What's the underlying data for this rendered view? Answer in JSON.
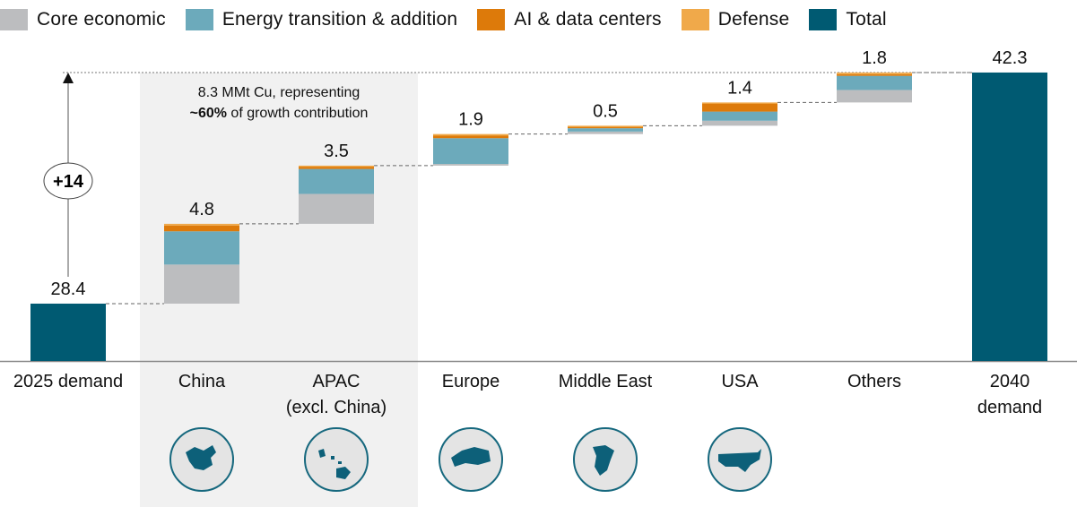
{
  "chart_data": {
    "type": "bar",
    "subtype": "waterfall-stacked",
    "title": "",
    "xlabel": "",
    "ylabel": "",
    "units": "MMt Cu",
    "grid": false,
    "legend_position": "top",
    "legend": [
      {
        "name": "Core economic",
        "color": "#bcbdbf"
      },
      {
        "name": "Energy transition & addition",
        "color": "#6caabb"
      },
      {
        "name": "AI & data centers",
        "color": "#dd7a0a"
      },
      {
        "name": "Defense",
        "color": "#f0a94a"
      },
      {
        "name": "Total",
        "color": "#005a72"
      }
    ],
    "categories": [
      "2025 demand",
      "China",
      "APAC\n(excl. China)",
      "Europe",
      "Middle East",
      "USA",
      "Others",
      "2040\ndemand"
    ],
    "category_lines": [
      [
        "2025 demand"
      ],
      [
        "China"
      ],
      [
        "APAC",
        "(excl. China)"
      ],
      [
        "Europe"
      ],
      [
        "Middle East"
      ],
      [
        "USA"
      ],
      [
        "Others"
      ],
      [
        "2040",
        "demand"
      ]
    ],
    "bars": [
      {
        "category": "2025 demand",
        "kind": "total",
        "value": 28.4,
        "label": "28.4"
      },
      {
        "category": "China",
        "kind": "delta",
        "value": 4.8,
        "label": "4.8",
        "segments": {
          "Core economic": 2.35,
          "Energy transition & addition": 2.0,
          "AI & data centers": 0.35,
          "Defense": 0.1
        },
        "highlight": true,
        "icon": "china-globe-icon"
      },
      {
        "category": "APAC (excl. China)",
        "kind": "delta",
        "value": 3.5,
        "label": "3.5",
        "segments": {
          "Core economic": 1.8,
          "Energy transition & addition": 1.5,
          "AI & data centers": 0.15,
          "Defense": 0.05
        },
        "highlight": true,
        "icon": "apac-globe-icon"
      },
      {
        "category": "Europe",
        "kind": "delta",
        "value": 1.9,
        "label": "1.9",
        "segments": {
          "Core economic": 0.1,
          "Energy transition & addition": 1.55,
          "AI & data centers": 0.15,
          "Defense": 0.1
        },
        "icon": "europe-globe-icon"
      },
      {
        "category": "Middle East",
        "kind": "delta",
        "value": 0.5,
        "label": "0.5",
        "segments": {
          "Core economic": 0.15,
          "Energy transition & addition": 0.2,
          "AI & data centers": 0.1,
          "Defense": 0.05
        },
        "icon": "middle-east-globe-icon"
      },
      {
        "category": "USA",
        "kind": "delta",
        "value": 1.4,
        "label": "1.4",
        "segments": {
          "Core economic": 0.3,
          "Energy transition & addition": 0.55,
          "AI & data centers": 0.5,
          "Defense": 0.05
        },
        "icon": "usa-globe-icon"
      },
      {
        "category": "Others",
        "kind": "delta",
        "value": 1.8,
        "label": "1.8",
        "segments": {
          "Core economic": 0.75,
          "Energy transition & addition": 0.85,
          "AI & data centers": 0.1,
          "Defense": 0.1
        }
      },
      {
        "category": "2040 demand",
        "kind": "total",
        "value": 42.3,
        "label": "42.3"
      }
    ],
    "growth_badge": "+14",
    "annotation": {
      "line1": "8.3 MMt Cu, representing",
      "line2_bold": "~60%",
      "line2_rest": " of growth contribution"
    },
    "ylim": [
      24.95,
      42.3
    ]
  }
}
